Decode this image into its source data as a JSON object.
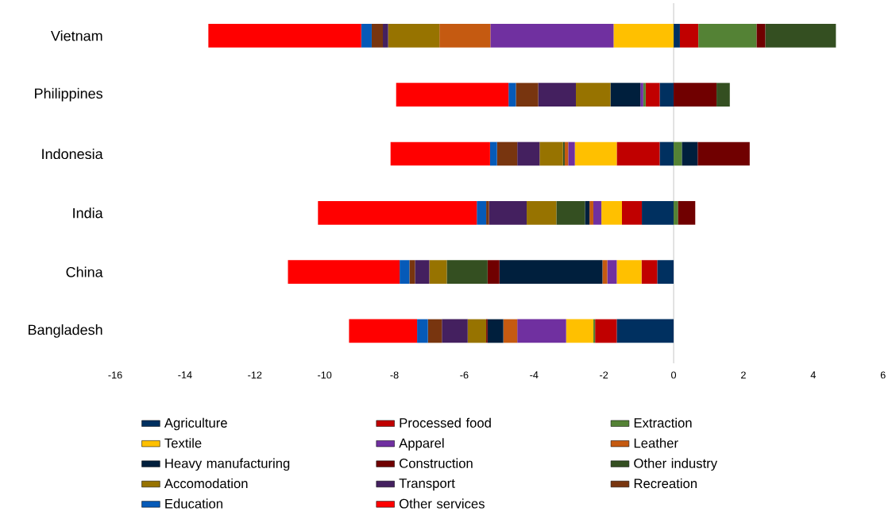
{
  "chart_data": {
    "type": "bar",
    "orientation": "horizontal",
    "stacked": true,
    "categories": [
      "Vietnam",
      "Philippines",
      "Indonesia",
      "India",
      "China",
      "Bangladesh"
    ],
    "xlim": [
      -16,
      6
    ],
    "xticks": [
      -16,
      -14,
      -12,
      -10,
      -8,
      -6,
      -4,
      -2,
      0,
      2,
      4,
      6
    ],
    "grid": false,
    "legend": "bottom",
    "ref_lines": [
      {
        "axis": "x",
        "value": 0,
        "color": "#d9d9d9"
      }
    ],
    "series": [
      {
        "name": "Agriculture",
        "color": "#003060",
        "values": [
          0.18,
          -0.4,
          -0.4,
          -0.91,
          -0.47,
          -1.63
        ]
      },
      {
        "name": "Processed food",
        "color": "#c00000",
        "values": [
          0.53,
          -0.4,
          -1.23,
          -0.57,
          -0.45,
          -0.62
        ]
      },
      {
        "name": "Extraction",
        "color": "#548235",
        "values": [
          1.67,
          -0.07,
          0.24,
          0.13,
          0,
          -0.05
        ]
      },
      {
        "name": "Textile",
        "color": "#ffc000",
        "values": [
          -1.72,
          0,
          -1.2,
          -0.59,
          -0.71,
          -0.78
        ]
      },
      {
        "name": "Apparel",
        "color": "#7030a0",
        "values": [
          -3.53,
          -0.08,
          -0.19,
          -0.23,
          -0.27,
          -1.4
        ]
      },
      {
        "name": "Leather",
        "color": "#c55a11",
        "values": [
          -1.46,
          0,
          -0.1,
          -0.11,
          -0.14,
          -0.4
        ]
      },
      {
        "name": "Heavy manufacturing",
        "color": "#001f3d",
        "values": [
          0,
          -0.86,
          0.45,
          -0.13,
          -2.95,
          -0.45
        ]
      },
      {
        "name": "Construction",
        "color": "#700000",
        "values": [
          0.25,
          1.23,
          1.49,
          0.49,
          -0.34,
          -0.04
        ]
      },
      {
        "name": "Other industry",
        "color": "#344f21",
        "values": [
          2.02,
          0.38,
          -0.05,
          -0.82,
          -1.17,
          0
        ]
      },
      {
        "name": "Accomodation",
        "color": "#977300",
        "values": [
          -1.47,
          -0.99,
          -0.67,
          -0.85,
          -0.5,
          -0.53
        ]
      },
      {
        "name": "Transport",
        "color": "#44205f",
        "values": [
          -0.15,
          -1.08,
          -0.64,
          -1.08,
          -0.41,
          -0.74
        ]
      },
      {
        "name": "Recreation",
        "color": "#78350f",
        "values": [
          -0.32,
          -0.64,
          -0.58,
          -0.08,
          -0.16,
          -0.4
        ]
      },
      {
        "name": "Education",
        "color": "#065ab8",
        "values": [
          -0.3,
          -0.21,
          -0.2,
          -0.27,
          -0.28,
          -0.31
        ]
      },
      {
        "name": "Other services",
        "color": "#ff0000",
        "values": [
          -4.38,
          -3.22,
          -2.85,
          -4.55,
          -3.2,
          -1.95
        ]
      }
    ]
  }
}
